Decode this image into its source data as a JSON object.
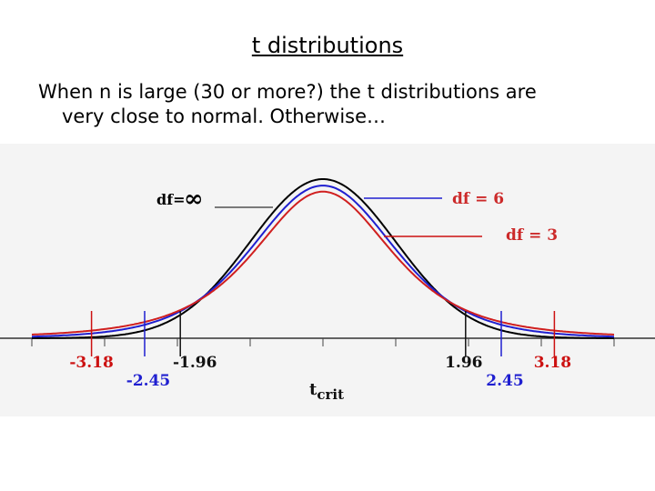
{
  "slide": {
    "title": "t distributions",
    "body_line1": "When n is large (30 or more?) the t distributions are",
    "body_line2": "very close to normal.  Otherwise…"
  },
  "chart_data": {
    "type": "line",
    "xlim": [
      -4,
      4
    ],
    "series": [
      {
        "name": "df= ∞",
        "df": "inf",
        "color": "#000000"
      },
      {
        "name": "df = 6",
        "df": 6,
        "color": "#1f1fd0"
      },
      {
        "name": "df = 3",
        "df": 3,
        "color": "#d01f1f"
      }
    ],
    "labels": {
      "df_inf": "df=",
      "df_inf_symbol": "∞",
      "df_6": "df = 6",
      "df_3": "df = 3",
      "t": "t",
      "t_sub": "crit"
    },
    "critical_values": [
      {
        "x": -3.18,
        "label": "-3.18",
        "color": "#cc1111"
      },
      {
        "x": -2.45,
        "label": "-2.45",
        "color": "#1f1fd0"
      },
      {
        "x": -1.96,
        "label": "-1.96",
        "color": "#111111"
      },
      {
        "x": 1.96,
        "label": "1.96",
        "color": "#111111"
      },
      {
        "x": 2.45,
        "label": "2.45",
        "color": "#1f1fd0"
      },
      {
        "x": 3.18,
        "label": "3.18",
        "color": "#cc1111"
      }
    ]
  }
}
